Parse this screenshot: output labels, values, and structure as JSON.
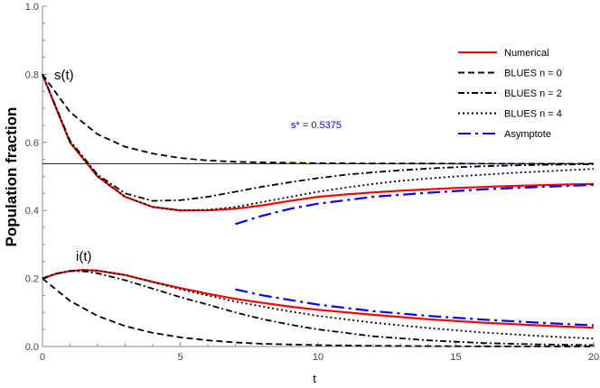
{
  "chart_data": {
    "type": "line",
    "xlabel": "t",
    "ylabel": "Population fraction",
    "xlim": [
      0,
      20
    ],
    "ylim": [
      0,
      1.0
    ],
    "xticks": [
      "0",
      "5",
      "10",
      "15",
      "20"
    ],
    "yticks": [
      "0.0",
      "0.2",
      "0.4",
      "0.6",
      "0.8",
      "1.0"
    ],
    "grid": false,
    "legend_position": "top-right",
    "annotations": {
      "s_label": "s(t)",
      "i_label": "i(t)",
      "s_star_label": "s* = 0.5375",
      "s_star_value": 0.5375
    },
    "legend": [
      {
        "name": "Numerical",
        "color": "#ff0000",
        "style": "solid"
      },
      {
        "name": "BLUES n = 0",
        "color": "#000000",
        "style": "dashed"
      },
      {
        "name": "BLUES n = 2",
        "color": "#000000",
        "style": "dash-dot"
      },
      {
        "name": "BLUES n = 4",
        "color": "#000000",
        "style": "dotted"
      },
      {
        "name": "Asymptote",
        "color": "#0000ff",
        "style": "long-dash-dot"
      }
    ],
    "series": [
      {
        "name": "Numerical",
        "variable": "s",
        "color": "#ff0000",
        "style": "solid",
        "x": [
          0,
          1,
          2,
          3,
          4,
          5,
          6,
          7,
          8,
          9,
          10,
          11,
          12,
          13,
          14,
          15,
          16,
          17,
          18,
          19,
          20
        ],
        "y": [
          0.8,
          0.6,
          0.5,
          0.44,
          0.41,
          0.4,
          0.4,
          0.405,
          0.415,
          0.428,
          0.44,
          0.447,
          0.453,
          0.458,
          0.462,
          0.466,
          0.469,
          0.472,
          0.474,
          0.476,
          0.478
        ]
      },
      {
        "name": "Numerical",
        "variable": "i",
        "color": "#ff0000",
        "style": "solid",
        "x": [
          0,
          0.5,
          1,
          1.5,
          2,
          3,
          4,
          5,
          6,
          7,
          8,
          9,
          10,
          12,
          14,
          16,
          18,
          20
        ],
        "y": [
          0.2,
          0.214,
          0.222,
          0.225,
          0.223,
          0.21,
          0.19,
          0.172,
          0.155,
          0.14,
          0.128,
          0.117,
          0.108,
          0.093,
          0.08,
          0.07,
          0.062,
          0.055
        ]
      },
      {
        "name": "BLUES n = 0",
        "variable": "s",
        "color": "#000000",
        "style": "dashed",
        "x": [
          0,
          1,
          2,
          3,
          4,
          5,
          6,
          7,
          8,
          10,
          12,
          14,
          16,
          18,
          20
        ],
        "y": [
          0.8,
          0.689,
          0.624,
          0.587,
          0.567,
          0.554,
          0.547,
          0.543,
          0.541,
          0.539,
          0.538,
          0.538,
          0.5375,
          0.5375,
          0.5375
        ]
      },
      {
        "name": "BLUES n = 0",
        "variable": "i",
        "color": "#000000",
        "style": "dashed",
        "x": [
          0,
          1,
          2,
          3,
          4,
          5,
          6,
          7,
          8,
          10,
          12,
          14,
          16,
          18,
          20
        ],
        "y": [
          0.2,
          0.134,
          0.09,
          0.06,
          0.04,
          0.027,
          0.018,
          0.012,
          0.008,
          0.004,
          0.002,
          0.001,
          0.0005,
          0.0002,
          0.0001
        ]
      },
      {
        "name": "BLUES n = 2",
        "variable": "s",
        "color": "#000000",
        "style": "dash-dot",
        "x": [
          0,
          1,
          2,
          3,
          4,
          5,
          6,
          7,
          8,
          9,
          10,
          11,
          12,
          13,
          14,
          15,
          16,
          17,
          18,
          19,
          20
        ],
        "y": [
          0.8,
          0.605,
          0.505,
          0.45,
          0.428,
          0.43,
          0.44,
          0.455,
          0.47,
          0.483,
          0.495,
          0.505,
          0.512,
          0.518,
          0.523,
          0.527,
          0.53,
          0.532,
          0.534,
          0.535,
          0.536
        ]
      },
      {
        "name": "BLUES n = 2",
        "variable": "i",
        "color": "#000000",
        "style": "dash-dot",
        "x": [
          0,
          0.5,
          1,
          1.5,
          2,
          3,
          4,
          5,
          6,
          7,
          8,
          9,
          10,
          12,
          14,
          16,
          18,
          20
        ],
        "y": [
          0.2,
          0.214,
          0.222,
          0.221,
          0.215,
          0.195,
          0.17,
          0.145,
          0.123,
          0.1,
          0.08,
          0.064,
          0.05,
          0.03,
          0.018,
          0.01,
          0.006,
          0.004
        ]
      },
      {
        "name": "BLUES n = 4",
        "variable": "s",
        "color": "#000000",
        "style": "dotted",
        "x": [
          0,
          1,
          2,
          3,
          4,
          5,
          6,
          7,
          8,
          9,
          10,
          11,
          12,
          13,
          14,
          15,
          16,
          17,
          18,
          19,
          20
        ],
        "y": [
          0.8,
          0.6,
          0.5,
          0.44,
          0.41,
          0.4,
          0.402,
          0.41,
          0.425,
          0.44,
          0.455,
          0.467,
          0.478,
          0.487,
          0.494,
          0.5,
          0.505,
          0.51,
          0.514,
          0.518,
          0.522
        ]
      },
      {
        "name": "BLUES n = 4",
        "variable": "i",
        "color": "#000000",
        "style": "dotted",
        "x": [
          0,
          0.5,
          1,
          1.5,
          2,
          3,
          4,
          5,
          6,
          7,
          8,
          9,
          10,
          12,
          14,
          16,
          18,
          20
        ],
        "y": [
          0.2,
          0.214,
          0.222,
          0.225,
          0.223,
          0.21,
          0.19,
          0.168,
          0.15,
          0.132,
          0.117,
          0.103,
          0.09,
          0.07,
          0.054,
          0.041,
          0.031,
          0.023
        ]
      },
      {
        "name": "Asymptote",
        "variable": "s",
        "color": "#0000ff",
        "style": "long-dash-dot",
        "x": [
          7,
          8,
          9,
          10,
          12,
          14,
          16,
          18,
          20
        ],
        "y": [
          0.36,
          0.385,
          0.405,
          0.42,
          0.44,
          0.452,
          0.462,
          0.469,
          0.475
        ]
      },
      {
        "name": "Asymptote",
        "variable": "i",
        "color": "#0000ff",
        "style": "long-dash-dot",
        "x": [
          7,
          8,
          10,
          12,
          14,
          16,
          18,
          20
        ],
        "y": [
          0.168,
          0.15,
          0.123,
          0.104,
          0.09,
          0.079,
          0.07,
          0.062
        ]
      }
    ]
  }
}
